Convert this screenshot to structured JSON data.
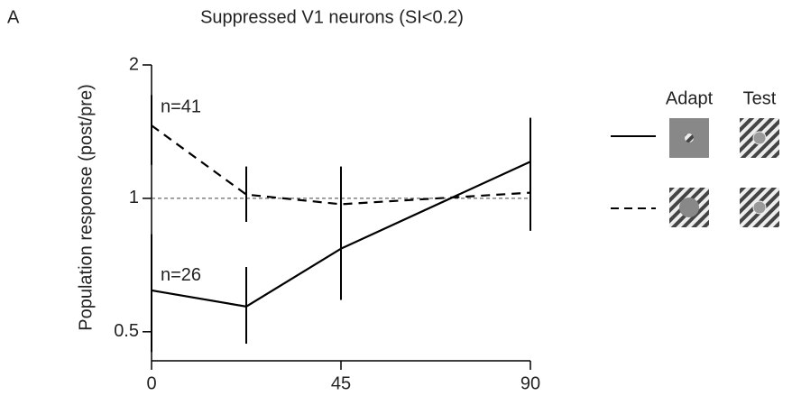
{
  "panel_label": "A",
  "chart_data": {
    "type": "line",
    "title": "Suppressed V1 neurons (SI<0.2)",
    "y_label": "Population response (post/pre)",
    "x": [
      0,
      22.5,
      45,
      90
    ],
    "series": [
      {
        "color": "#000000",
        "line_style": "solid",
        "annotation": "n=26",
        "values": [
          0.62,
          0.57,
          0.77,
          1.21
        ],
        "lower": [
          0.45,
          0.47,
          0.59,
          0.845
        ],
        "upper": [
          0.83,
          0.7,
          0.92,
          1.52
        ]
      },
      {
        "color": "#000000",
        "line_style": "dashed",
        "annotation": "n=41",
        "values": [
          1.46,
          1.02,
          0.97,
          1.03
        ],
        "lower": [
          1.19,
          0.885,
          0.8,
          0.88
        ],
        "upper": [
          1.71,
          1.18,
          1.18,
          1.25
        ]
      }
    ],
    "reference_line": 1,
    "xlim": [
      0,
      90
    ],
    "xticks": [
      0,
      45,
      90
    ],
    "ylim": [
      0.43,
      2
    ],
    "yticks": [
      0.5,
      1,
      2
    ],
    "log_y": true
  },
  "legend": {
    "adapt_label": "Adapt",
    "test_label": "Test"
  }
}
